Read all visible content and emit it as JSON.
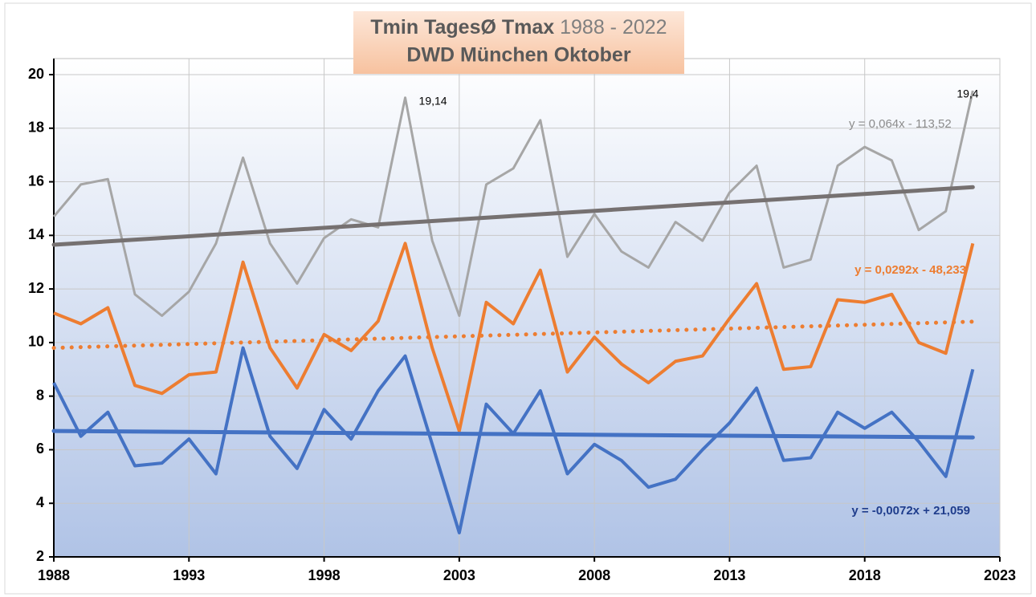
{
  "chart_data": {
    "type": "line",
    "title": [
      "Tmin TagesØ Tmax",
      "1988 - 2022"
    ],
    "subtitle": "DWD München Oktober",
    "x": [
      1988,
      1989,
      1990,
      1991,
      1992,
      1993,
      1994,
      1995,
      1996,
      1997,
      1998,
      1999,
      2000,
      2001,
      2002,
      2003,
      2004,
      2005,
      2006,
      2007,
      2008,
      2009,
      2010,
      2011,
      2012,
      2013,
      2014,
      2015,
      2016,
      2017,
      2018,
      2019,
      2020,
      2021,
      2022
    ],
    "series": [
      {
        "color": "#a6a6a6",
        "values": [
          14.7,
          15.9,
          16.1,
          11.8,
          11.0,
          11.9,
          13.7,
          16.9,
          13.7,
          12.2,
          13.9,
          14.6,
          14.3,
          19.14,
          13.8,
          11.0,
          15.9,
          16.5,
          18.3,
          13.2,
          14.8,
          13.4,
          12.8,
          14.5,
          13.8,
          15.6,
          16.6,
          12.8,
          13.1,
          16.6,
          17.3,
          16.8,
          14.2,
          14.9,
          19.4
        ],
        "value_labels": [
          null,
          null,
          null,
          null,
          null,
          null,
          null,
          null,
          null,
          null,
          null,
          null,
          null,
          "19,14",
          null,
          null,
          null,
          null,
          null,
          null,
          null,
          null,
          null,
          null,
          null,
          null,
          null,
          null,
          null,
          null,
          null,
          null,
          null,
          null,
          "19,4"
        ]
      },
      {
        "color": "#ed7d31",
        "values": [
          11.1,
          10.7,
          11.3,
          8.4,
          8.1,
          8.8,
          8.9,
          13.0,
          9.8,
          8.3,
          10.3,
          9.7,
          10.8,
          13.7,
          9.8,
          6.7,
          11.5,
          10.7,
          12.7,
          8.9,
          10.2,
          9.2,
          8.5,
          9.3,
          9.5,
          10.9,
          12.2,
          9.0,
          9.1,
          11.6,
          11.5,
          11.8,
          10.0,
          9.6,
          13.7
        ]
      },
      {
        "color": "#4472c4",
        "values": [
          8.5,
          6.5,
          7.4,
          5.4,
          5.5,
          6.4,
          5.1,
          9.8,
          6.5,
          5.3,
          7.5,
          6.4,
          8.2,
          9.5,
          6.2,
          2.9,
          7.7,
          6.6,
          8.2,
          5.1,
          6.2,
          5.6,
          4.6,
          4.9,
          6.0,
          7.0,
          8.3,
          5.6,
          5.7,
          7.4,
          6.8,
          7.4,
          6.3,
          5.0,
          9.0
        ]
      }
    ],
    "trendlines": [
      {
        "x": [
          1988,
          2022
        ],
        "values": [
          13.65,
          15.8
        ],
        "label": "y = 0,064x - 113,52",
        "color": "#767171",
        "label_color": "#8c8c8c",
        "style": "solid"
      },
      {
        "x": [
          1988,
          2022
        ],
        "values": [
          9.8,
          10.78
        ],
        "label": "y = 0,0292x - 48,233",
        "color": "#ed7d31",
        "label_color": "#ed7d31",
        "style": "dotted"
      },
      {
        "x": [
          1988,
          2022
        ],
        "values": [
          6.7,
          6.46
        ],
        "label": "y = -0,0072x + 21,059",
        "color": "#4472c4",
        "label_color": "#1f3d8c",
        "style": "solid"
      }
    ],
    "xlim": [
      1988,
      2023
    ],
    "xticks": [
      1988,
      1993,
      1998,
      2003,
      2008,
      2013,
      2018,
      2023
    ],
    "ylim": [
      2,
      20
    ],
    "yticks": [
      2,
      4,
      6,
      8,
      10,
      12,
      14,
      16,
      18,
      20
    ],
    "grid": true
  }
}
